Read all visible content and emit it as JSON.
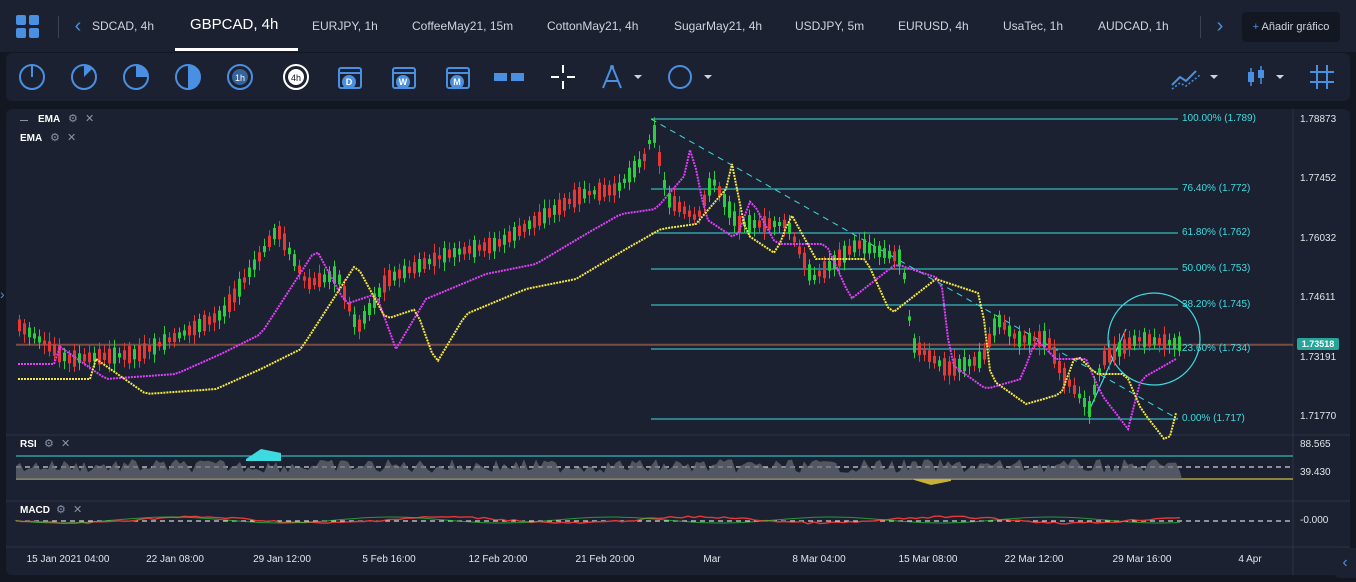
{
  "tabs": [
    {
      "label": "SDCAD, 4h"
    },
    {
      "label": "GBPCAD, 4h"
    },
    {
      "label": "EURJPY, 1h"
    },
    {
      "label": "CoffeeMay21, 15m"
    },
    {
      "label": "CottonMay21, 4h"
    },
    {
      "label": "SugarMay21, 4h"
    },
    {
      "label": "USDJPY, 5m"
    },
    {
      "label": "EURUSD, 4h"
    },
    {
      "label": "UsaTec, 1h"
    },
    {
      "label": "AUDCAD, 1h"
    }
  ],
  "active_tab": "GBPCAD, 4h",
  "add_chart_label": "Añadir gráfico",
  "toolbar": {
    "timeframe_days_letter": "D",
    "timeframe_weeks_letter": "W",
    "timeframe_months_letter": "M",
    "timeframe_1h": "1h",
    "timeframe_4h": "4h"
  },
  "indicators": {
    "ema1": "EMA",
    "ema2": "EMA",
    "rsi": "RSI",
    "macd": "MACD"
  },
  "price_axis": [
    "1.78873",
    "1.77452",
    "1.76032",
    "1.74611",
    "1.73191",
    "1.71770"
  ],
  "current_price": "1.73518",
  "rsi_axis": [
    "88.565",
    "39.430"
  ],
  "macd_axis": [
    "-0.000"
  ],
  "date_axis": [
    "15 Jan 2021 04:00",
    "22 Jan 08:00",
    "29 Jan 12:00",
    "5 Feb 16:00",
    "12 Feb 20:00",
    "21 Feb 20:00",
    "Mar",
    "8 Mar 04:00",
    "15 Mar 08:00",
    "22 Mar 12:00",
    "29 Mar 16:00",
    "4 Apr"
  ],
  "fib_levels": [
    {
      "label": "100.00% (1.789)"
    },
    {
      "label": "76.40% (1.772)"
    },
    {
      "label": "61.80% (1.762)"
    },
    {
      "label": "50.00% (1.753)"
    },
    {
      "label": "38.20% (1.745)"
    },
    {
      "label": "23.60% (1.734)"
    },
    {
      "label": "0.00% (1.717)"
    }
  ],
  "colors": {
    "accent": "#4a90e2",
    "up": "#26a69a",
    "up_bright": "#2ecc40",
    "down": "#e53935",
    "ema_fast": "#e040fb",
    "ema_slow": "#f5e642",
    "fib": "#3ddbe0",
    "panel": "#1b2130",
    "bg": "#131722"
  },
  "icons": [
    "grid-menu-icon",
    "chevron-left-icon",
    "chevron-right-icon",
    "plus-icon",
    "time-range-icon",
    "calendar-day-icon",
    "calendar-week-icon",
    "calendar-month-icon",
    "ruler-icon",
    "crosshair-icon",
    "compass-tool-icon",
    "circle-tool-icon",
    "line-chart-type-icon",
    "candles-icon",
    "grid-toggle-icon",
    "settings-icon",
    "close-icon",
    "chevron-down-icon"
  ]
}
